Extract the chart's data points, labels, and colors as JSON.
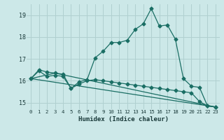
{
  "xlabel": "Humidex (Indice chaleur)",
  "bg_color": "#cce8e8",
  "line_color": "#1a6e64",
  "grid_color": "#b0d0d0",
  "xlim": [
    -0.5,
    23.5
  ],
  "ylim": [
    14.7,
    19.5
  ],
  "yticks": [
    15,
    16,
    17,
    18,
    19
  ],
  "xticks": [
    0,
    1,
    2,
    3,
    4,
    5,
    6,
    7,
    8,
    9,
    10,
    11,
    12,
    13,
    14,
    15,
    16,
    17,
    18,
    19,
    20,
    21,
    22,
    23
  ],
  "line1_x": [
    0,
    1,
    2,
    3,
    4,
    5,
    6,
    7,
    8,
    9,
    10,
    11,
    12,
    13,
    14,
    15,
    16,
    17,
    18,
    19,
    20,
    21,
    22,
    23
  ],
  "line1_y": [
    16.1,
    16.5,
    16.4,
    16.35,
    16.3,
    15.65,
    15.95,
    16.05,
    17.05,
    17.35,
    17.75,
    17.75,
    17.85,
    18.35,
    18.6,
    19.3,
    18.5,
    18.55,
    17.9,
    16.1,
    15.75,
    15.7,
    14.85,
    14.8
  ],
  "line2_x": [
    0,
    1,
    2,
    3,
    4,
    5,
    6,
    7,
    8,
    9,
    10,
    11,
    12,
    13,
    14,
    15,
    16,
    17,
    18,
    19,
    20,
    21,
    22,
    23
  ],
  "line2_y": [
    16.1,
    16.45,
    16.2,
    16.25,
    16.2,
    15.65,
    15.85,
    16.0,
    16.05,
    16.0,
    15.95,
    15.9,
    15.85,
    15.8,
    15.75,
    15.7,
    15.65,
    15.6,
    15.55,
    15.5,
    15.45,
    15.05,
    14.85,
    14.8
  ],
  "line3_x": [
    0,
    23
  ],
  "line3_y": [
    16.1,
    14.8
  ],
  "line4_x": [
    0,
    3,
    23
  ],
  "line4_y": [
    16.1,
    16.35,
    14.8
  ]
}
